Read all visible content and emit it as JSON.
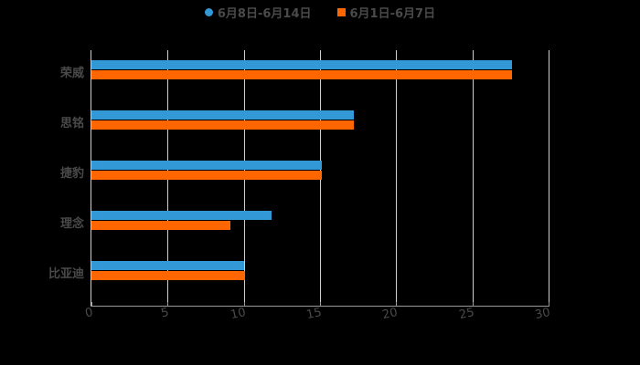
{
  "chart_data": {
    "type": "bar",
    "orientation": "horizontal",
    "title": "",
    "categories": [
      "荣威",
      "思铭",
      "捷豹",
      "理念",
      "比亚迪"
    ],
    "series": [
      {
        "name": "6月8日-6月14日",
        "color": "#3399d6",
        "values": [
          27.6,
          17.2,
          15.1,
          11.8,
          10.0
        ]
      },
      {
        "name": "6月1日-6月7日",
        "color": "#ff6600",
        "values": [
          27.6,
          17.2,
          15.1,
          9.1,
          10.1
        ]
      }
    ],
    "xlabel": "",
    "ylabel": "",
    "xlim": [
      0,
      30
    ],
    "xticks": [
      "0",
      "5",
      "10",
      "15",
      "20",
      "25",
      "30"
    ],
    "grid": true,
    "legend_position": "top"
  },
  "legend": [
    {
      "label": "6月8日-6月14日",
      "color": "#3399d6",
      "shape": "circle"
    },
    {
      "label": "6月1日-6月7日",
      "color": "#ff6600",
      "shape": "square"
    }
  ]
}
